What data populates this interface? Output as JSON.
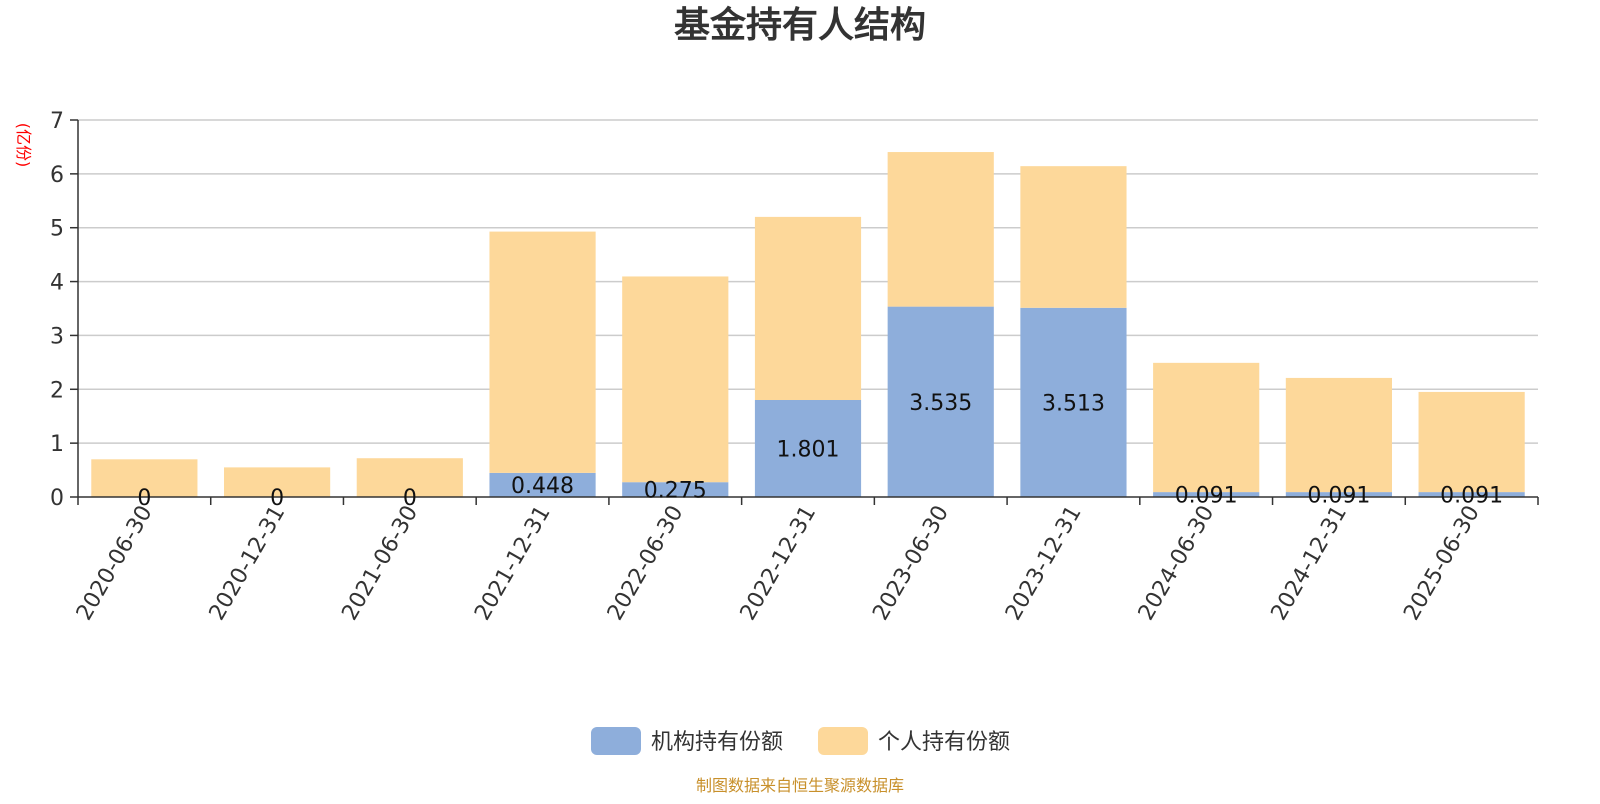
{
  "chart_data": {
    "type": "bar",
    "stacked": true,
    "title": "基金持有人结构",
    "ylabel": "(亿份)",
    "xlabel": "",
    "ylim": [
      0,
      7
    ],
    "yticks": [
      0,
      1,
      2,
      3,
      4,
      5,
      6,
      7
    ],
    "grid": true,
    "legend_position": "bottom",
    "categories": [
      "2020-06-30",
      "2020-12-31",
      "2021-06-30",
      "2021-12-31",
      "2022-06-30",
      "2022-12-31",
      "2023-06-30",
      "2023-12-31",
      "2024-06-30",
      "2024-12-31",
      "2025-06-30"
    ],
    "series": [
      {
        "name": "机构持有份额",
        "color": "#8eaedb",
        "values": [
          0,
          0,
          0,
          0.448,
          0.275,
          1.801,
          3.535,
          3.513,
          0.091,
          0.091,
          0.091
        ],
        "labels": [
          "0",
          "0",
          "0",
          "0.448",
          "0.275",
          "1.801",
          "3.535",
          "3.513",
          "0.091",
          "0.091",
          "0.091"
        ]
      },
      {
        "name": "个人持有份额",
        "color": "#fdd89a",
        "values": [
          0.7,
          0.55,
          0.72,
          4.48,
          3.82,
          3.4,
          2.87,
          2.63,
          2.4,
          2.12,
          1.86
        ]
      }
    ],
    "source": "制图数据来自恒生聚源数据库"
  }
}
